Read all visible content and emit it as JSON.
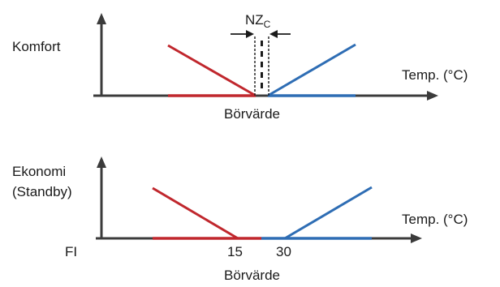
{
  "colors": {
    "heating": "#c0272d",
    "cooling": "#2e6db4",
    "axis": "#3b3b3b",
    "text": "#1a1a1a"
  },
  "top": {
    "y_label": "Komfort",
    "x_label": "Temp. (°C)",
    "setpoint_label": "Börvärde",
    "deadzone_label_main": "NZ",
    "deadzone_label_sub": "C"
  },
  "bottom": {
    "y_label_line1": "Ekonomi",
    "y_label_line2": "(Standby)",
    "x_label": "Temp. (°C)",
    "tick_heat": "15",
    "tick_cool": "30",
    "left_label": "FI",
    "setpoint_label": "Börvärde"
  }
}
